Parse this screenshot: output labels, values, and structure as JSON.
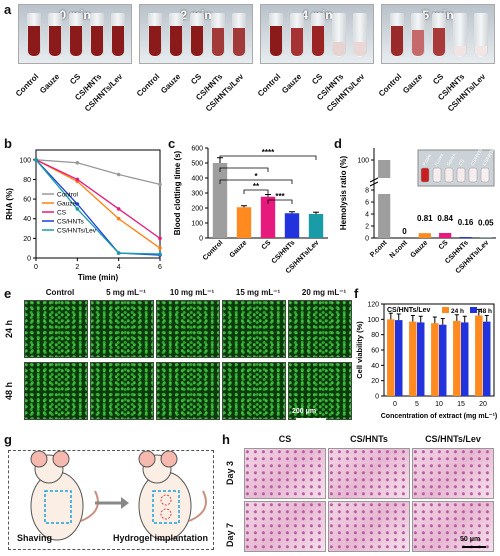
{
  "panels": {
    "a": "a",
    "b": "b",
    "c": "c",
    "d": "d",
    "e": "e",
    "f": "f",
    "g": "g",
    "h": "h"
  },
  "a": {
    "times": [
      "0 min",
      "2 min",
      "4 min",
      "5 min"
    ],
    "groups": [
      "Control",
      "Gauze",
      "CS",
      "CS/HNTs",
      "CS/HNTs/Lev"
    ]
  },
  "b": {
    "ylabel": "RHA (%)",
    "xlabel": "Time (min)",
    "yticks": [
      "0",
      "20",
      "40",
      "60",
      "80",
      "100"
    ],
    "xticks": [
      "0",
      "2",
      "4",
      "6"
    ],
    "legend": [
      "Control",
      "Gauze",
      "CS",
      "CS/HNTs",
      "CS/HNTs/Lev"
    ],
    "colors": [
      "#999999",
      "#ff7f0e",
      "#e6197d",
      "#1f3fd6",
      "#1a9ba8"
    ]
  },
  "c": {
    "ylabel": "Blood clotting time (s)",
    "yticks": [
      "0",
      "100",
      "200",
      "300",
      "400",
      "500",
      "600"
    ],
    "categories": [
      "Control",
      "Gauze",
      "CS",
      "CS/HNTs",
      "CS/HNTs/Lev"
    ],
    "sig": [
      "****",
      "*",
      "**",
      "***"
    ],
    "colors": [
      "#9e9e9e",
      "#ff8a1f",
      "#e6197d",
      "#2233dd",
      "#1a9ba8"
    ]
  },
  "d": {
    "ylabel": "Hemolysis ratio (%)",
    "yticks": [
      "0",
      "2",
      "4",
      "6",
      "8",
      "100"
    ],
    "categories": [
      "P.cont",
      "N.cont",
      "Gauze",
      "CS",
      "CS/HNTs",
      "CS/HNTs/Lev"
    ],
    "value_labels": [
      "",
      "0",
      "0.81",
      "0.84",
      "0.16",
      "0.05"
    ],
    "inset_labels": [
      "P.cont",
      "N.cont",
      "Gauze",
      "CS",
      "CS/HNTs",
      "CS/HNTs/Lev"
    ],
    "colors": [
      "#9e9e9e",
      "#9e9e9e",
      "#ff8a1f",
      "#e6197d",
      "#2233dd",
      "#1a9ba8"
    ]
  },
  "e": {
    "cols": [
      "Control",
      "5 mg mL⁻¹",
      "10 mg mL⁻¹",
      "15 mg mL⁻¹",
      "20 mg mL⁻¹"
    ],
    "rows": [
      "24 h",
      "48 h"
    ],
    "scale": "200 μm"
  },
  "f": {
    "title": "CS/HNTs/Lev",
    "ylabel": "Cell viability (%)",
    "xlabel": "Concentration of extract (mg mL⁻¹)",
    "yticks": [
      "0",
      "20",
      "40",
      "60",
      "80",
      "100",
      "120"
    ],
    "xticks": [
      "0",
      "5",
      "10",
      "15",
      "20"
    ],
    "legend": [
      "24 h",
      "48 h"
    ],
    "colors": [
      "#ff8a1f",
      "#2233dd"
    ]
  },
  "g": {
    "labels": [
      "Shaving",
      "Hydrogel implantation"
    ]
  },
  "h": {
    "cols": [
      "CS",
      "CS/HNTs",
      "CS/HNTs/Lev"
    ],
    "rows": [
      "Day 3",
      "Day 7"
    ],
    "scale": "50 μm"
  },
  "chart_data": [
    {
      "type": "line",
      "panel": "b",
      "x": [
        0,
        2,
        4,
        6
      ],
      "series": [
        {
          "name": "Control",
          "values": [
            100,
            97,
            85,
            75
          ]
        },
        {
          "name": "Gauze",
          "values": [
            100,
            78,
            40,
            10
          ]
        },
        {
          "name": "CS",
          "values": [
            100,
            80,
            50,
            20
          ]
        },
        {
          "name": "CS/HNTs",
          "values": [
            100,
            55,
            5,
            3
          ]
        },
        {
          "name": "CS/HNTs/Lev",
          "values": [
            100,
            50,
            5,
            4
          ]
        }
      ],
      "ylim": [
        0,
        110
      ],
      "xlim": [
        0,
        6
      ]
    },
    {
      "type": "bar",
      "panel": "c",
      "categories": [
        "Control",
        "Gauze",
        "CS",
        "CS/HNTs",
        "CS/HNTs/Lev"
      ],
      "values": [
        500,
        205,
        275,
        165,
        160
      ],
      "errors": [
        35,
        10,
        15,
        10,
        12
      ],
      "ylim": [
        0,
        600
      ]
    },
    {
      "type": "bar",
      "panel": "d",
      "categories": [
        "P.cont",
        "N.cont",
        "Gauze",
        "CS",
        "CS/HNTs",
        "CS/HNTs/Lev"
      ],
      "values": [
        100,
        0,
        0.81,
        0.84,
        0.16,
        0.05
      ]
    },
    {
      "type": "bar",
      "panel": "f",
      "categories": [
        "0",
        "5",
        "10",
        "15",
        "20"
      ],
      "series": [
        {
          "name": "24 h",
          "values": [
            100,
            97,
            95,
            98,
            105
          ]
        },
        {
          "name": "48 h",
          "values": [
            99,
            96,
            93,
            96,
            97
          ]
        }
      ],
      "ylim": [
        0,
        120
      ]
    }
  ]
}
